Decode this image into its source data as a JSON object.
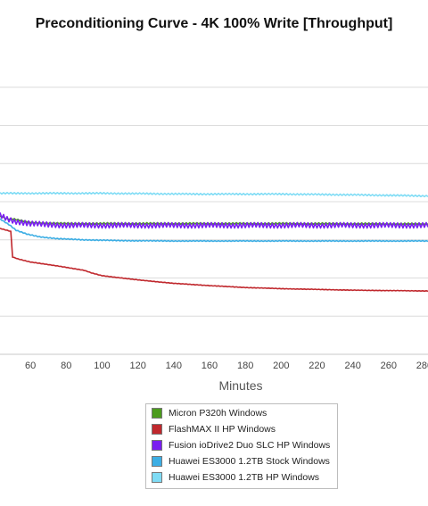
{
  "chart_data": {
    "type": "line",
    "title": "Preconditioning Curve - 4K 100% Write [Throughput]",
    "xlabel": "Minutes",
    "ylabel": "",
    "x_ticks": [
      60,
      80,
      100,
      120,
      140,
      160,
      180,
      200,
      220,
      240,
      260,
      280
    ],
    "xlim": [
      43,
      282
    ],
    "ylim": [
      0,
      8
    ],
    "y_gridlines": [
      1,
      2,
      3,
      4,
      5,
      6,
      7
    ],
    "grid": true,
    "legend_position": "bottom",
    "series": [
      {
        "name": "Micron P320h Windows",
        "color": "#4c9b1e",
        "points": [
          [
            43,
            3.62
          ],
          [
            47,
            3.55
          ],
          [
            50,
            3.55
          ],
          [
            55,
            3.5
          ],
          [
            60,
            3.46
          ],
          [
            70,
            3.44
          ],
          [
            80,
            3.43
          ],
          [
            100,
            3.43
          ],
          [
            140,
            3.43
          ],
          [
            200,
            3.43
          ],
          [
            282,
            3.42
          ]
        ],
        "noise": 0.02
      },
      {
        "name": "FlashMAX II HP Windows",
        "color": "#c0282d",
        "points": [
          [
            43,
            3.3
          ],
          [
            49,
            3.22
          ],
          [
            50,
            2.55
          ],
          [
            53,
            2.5
          ],
          [
            60,
            2.42
          ],
          [
            70,
            2.35
          ],
          [
            80,
            2.28
          ],
          [
            90,
            2.2
          ],
          [
            95,
            2.12
          ],
          [
            100,
            2.06
          ],
          [
            120,
            1.95
          ],
          [
            140,
            1.86
          ],
          [
            160,
            1.8
          ],
          [
            180,
            1.75
          ],
          [
            200,
            1.72
          ],
          [
            220,
            1.7
          ],
          [
            240,
            1.68
          ],
          [
            260,
            1.67
          ],
          [
            282,
            1.66
          ]
        ],
        "noise": 0.006
      },
      {
        "name": "Fusion ioDrive2 Duo SLC HP Windows",
        "color": "#7a1ff0",
        "points": [
          [
            43,
            3.65
          ],
          [
            47,
            3.55
          ],
          [
            52,
            3.48
          ],
          [
            60,
            3.42
          ],
          [
            70,
            3.4
          ],
          [
            80,
            3.38
          ],
          [
            100,
            3.38
          ],
          [
            150,
            3.38
          ],
          [
            200,
            3.38
          ],
          [
            282,
            3.38
          ]
        ],
        "noise": 0.07
      },
      {
        "name": "Huawei ES3000 1.2TB Stock Windows",
        "color": "#3daee4",
        "points": [
          [
            43,
            3.55
          ],
          [
            48,
            3.4
          ],
          [
            52,
            3.25
          ],
          [
            58,
            3.15
          ],
          [
            65,
            3.08
          ],
          [
            75,
            3.03
          ],
          [
            90,
            3.0
          ],
          [
            110,
            2.98
          ],
          [
            140,
            2.97
          ],
          [
            200,
            2.97
          ],
          [
            282,
            2.97
          ]
        ],
        "noise": 0.012
      },
      {
        "name": "Huawei ES3000 1.2TB HP Windows",
        "color": "#7fdcf5",
        "points": [
          [
            43,
            4.22
          ],
          [
            100,
            4.22
          ],
          [
            150,
            4.2
          ],
          [
            200,
            4.2
          ],
          [
            240,
            4.18
          ],
          [
            282,
            4.15
          ]
        ],
        "noise": 0.02
      }
    ]
  }
}
